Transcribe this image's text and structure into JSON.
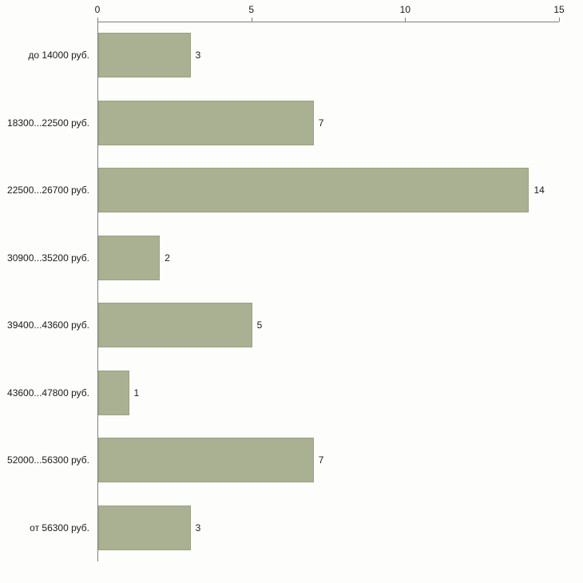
{
  "chart_data": {
    "type": "bar",
    "orientation": "horizontal",
    "title": "",
    "xlabel": "",
    "ylabel": "",
    "categories": [
      "до 14000 руб.",
      "18300...22500 руб.",
      "22500...26700 руб.",
      "30900...35200 руб.",
      "39400...43600 руб.",
      "43600...47800 руб.",
      "52000...56300 руб.",
      "от 56300 руб."
    ],
    "values": [
      3,
      7,
      14,
      2,
      5,
      1,
      7,
      3
    ],
    "xticks": [
      0,
      5,
      10,
      15
    ],
    "xlim": [
      0,
      15
    ],
    "grid": false,
    "legend": false,
    "bar_color": "#a9b192",
    "bar_border_color": "#98a27f",
    "axis_color": "#808080",
    "text_color": "#1a1a1a",
    "background_color": "#fdfdfb"
  }
}
